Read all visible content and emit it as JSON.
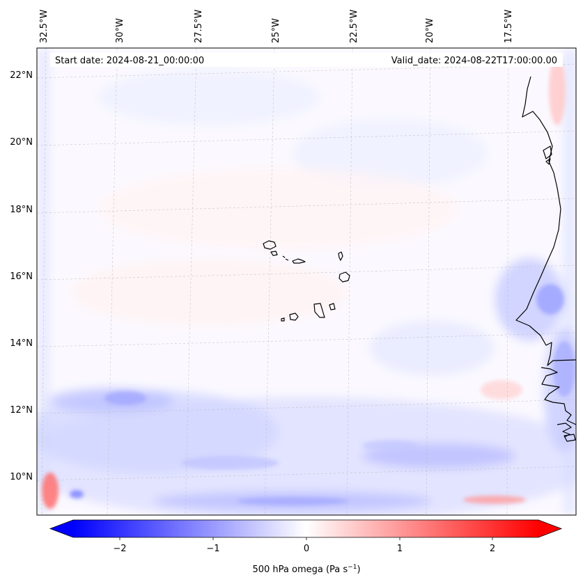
{
  "header": {
    "start_date": "Start date: 2024-08-21_00:00:00",
    "valid_date": "Valid_date: 2024-08-22T17:00:00.00"
  },
  "map": {
    "lon_labels": [
      "32.5°W",
      "30°W",
      "27.5°W",
      "25°W",
      "22.5°W",
      "20°W",
      "17.5°W"
    ],
    "lat_labels": [
      "22°N",
      "20°N",
      "18°N",
      "16°N",
      "14°N",
      "12°N",
      "10°N"
    ],
    "coastline_color": "#000000"
  },
  "colorbar": {
    "ticks": [
      "−2",
      "−1",
      "0",
      "1",
      "2"
    ],
    "label_main": "500 hPa omega (Pa s",
    "label_sup": "−1",
    "label_end": ")",
    "cmap": "bwr",
    "range": [
      -2.7,
      2.7
    ]
  }
}
